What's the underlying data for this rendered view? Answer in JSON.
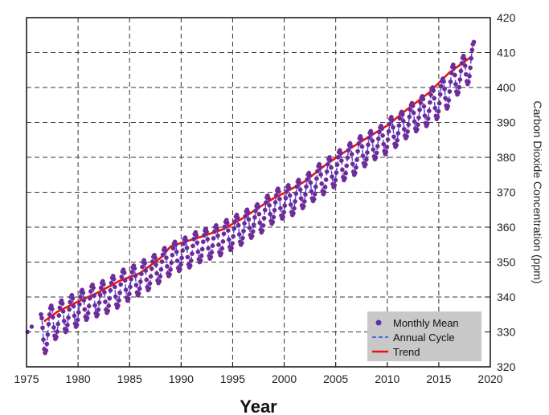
{
  "chart_data": {
    "type": "scatter",
    "title": "",
    "xlabel": "Year",
    "ylabel": "Carbon Dioxide Concentration (ppm)",
    "xlim": [
      1975,
      2020
    ],
    "ylim": [
      320,
      420
    ],
    "x_ticks": [
      1975,
      1980,
      1985,
      1990,
      1995,
      2000,
      2005,
      2010,
      2015,
      2020
    ],
    "y_ticks": [
      320,
      330,
      340,
      350,
      360,
      370,
      380,
      390,
      400,
      410,
      420
    ],
    "x_tick_labels": [
      "1975",
      "1980",
      "1985",
      "1990",
      "1995",
      "2000",
      "2005",
      "2010",
      "2015",
      "2020"
    ],
    "y_tick_labels": [
      "320",
      "330",
      "340",
      "350",
      "360",
      "370",
      "380",
      "390",
      "400",
      "410",
      "420"
    ],
    "y_axis_side": "right",
    "grid": true,
    "legend": {
      "position": "bottom-right",
      "entries": [
        {
          "label": "Monthly Mean",
          "marker": "dot"
        },
        {
          "label": "Annual Cycle",
          "marker": "dashed-line"
        },
        {
          "label": "Trend",
          "marker": "solid-line"
        }
      ]
    },
    "colors": {
      "monthly_mean": "#5b2fa8",
      "annual_cycle": "#3344ee",
      "trend": "#ee1111",
      "grid": "#333333",
      "legend_bg": "#c8c8c8"
    },
    "series": [
      {
        "name": "Trend",
        "style": "solid",
        "x": [
          1976.7,
          1978,
          1980,
          1982,
          1984,
          1986,
          1988,
          1989,
          1990,
          1992,
          1994,
          1996,
          1998,
          1999,
          2000,
          2002,
          2004,
          2006,
          2008,
          2010,
          2012,
          2014,
          2016,
          2018.2
        ],
        "y": [
          333.0,
          335.8,
          338.7,
          341.4,
          344.6,
          346.8,
          351.2,
          354.5,
          355.5,
          357.3,
          359.3,
          362.6,
          366.5,
          368.3,
          369.8,
          373.1,
          377.8,
          381.8,
          385.5,
          389.1,
          393.9,
          398.4,
          404.2,
          408.9
        ]
      },
      {
        "name": "Monthly Mean",
        "style": "markers",
        "note_on_values": "one point per month; annual maxima ≈ trend + 3.5, minima ≈ trend − 4",
        "annual_peaks": {
          "x": [
            1976.4,
            1977.4,
            1978.4,
            1979.4,
            1980.4,
            1981.4,
            1982.4,
            1983.4,
            1984.4,
            1985.4,
            1986.4,
            1987.4,
            1988.4,
            1989.4,
            1990.4,
            1991.4,
            1992.4,
            1993.4,
            1994.4,
            1995.4,
            1996.4,
            1997.4,
            1998.4,
            1999.4,
            2000.4,
            2001.4,
            2002.4,
            2003.4,
            2004.4,
            2005.4,
            2006.4,
            2007.4,
            2008.4,
            2009.4,
            2010.4,
            2011.4,
            2012.4,
            2013.4,
            2014.4,
            2015.4,
            2016.4,
            2017.4,
            2018.4
          ],
          "y": [
            335.0,
            337.5,
            339.0,
            340.5,
            342.0,
            343.5,
            344.5,
            346.0,
            347.8,
            349.0,
            350.5,
            352.0,
            354.0,
            355.8,
            357.0,
            358.5,
            359.5,
            360.5,
            362.0,
            363.5,
            365.0,
            366.5,
            369.0,
            371.0,
            372.0,
            373.5,
            375.5,
            378.0,
            380.0,
            382.0,
            384.0,
            386.0,
            387.5,
            389.0,
            391.5,
            393.0,
            395.5,
            397.5,
            400.0,
            402.5,
            406.5,
            409.0,
            413.0
          ]
        },
        "annual_troughs": {
          "x": [
            1976.8,
            1977.8,
            1978.8,
            1979.8,
            1980.8,
            1981.8,
            1982.8,
            1983.8,
            1984.8,
            1985.8,
            1986.8,
            1987.8,
            1988.8,
            1989.8,
            1990.8,
            1991.8,
            1992.8,
            1993.8,
            1994.8,
            1995.8,
            1996.8,
            1997.8,
            1998.8,
            1999.8,
            2000.8,
            2001.8,
            2002.8,
            2003.8,
            2004.8,
            2005.8,
            2006.8,
            2007.8,
            2008.8,
            2009.8,
            2010.8,
            2011.8,
            2012.8,
            2013.8,
            2014.8,
            2015.8,
            2016.8,
            2017.8
          ],
          "y": [
            324.0,
            328.0,
            330.0,
            331.5,
            333.5,
            334.5,
            335.5,
            337.0,
            339.0,
            340.5,
            342.0,
            344.0,
            346.0,
            347.5,
            348.5,
            350.0,
            351.0,
            352.0,
            353.5,
            355.0,
            357.0,
            358.5,
            361.0,
            362.5,
            363.5,
            365.5,
            367.5,
            369.5,
            371.5,
            373.5,
            375.0,
            377.5,
            379.5,
            381.0,
            383.0,
            385.5,
            387.5,
            389.0,
            391.0,
            394.0,
            398.0,
            401.0
          ]
        },
        "early_points": {
          "x": [
            1975.1,
            1975.5
          ],
          "y": [
            330.0,
            331.5
          ]
        }
      },
      {
        "name": "Annual Cycle",
        "style": "dashed",
        "note_on_values": "dashed fit following the seasonal oscillation of the monthly means"
      }
    ]
  }
}
